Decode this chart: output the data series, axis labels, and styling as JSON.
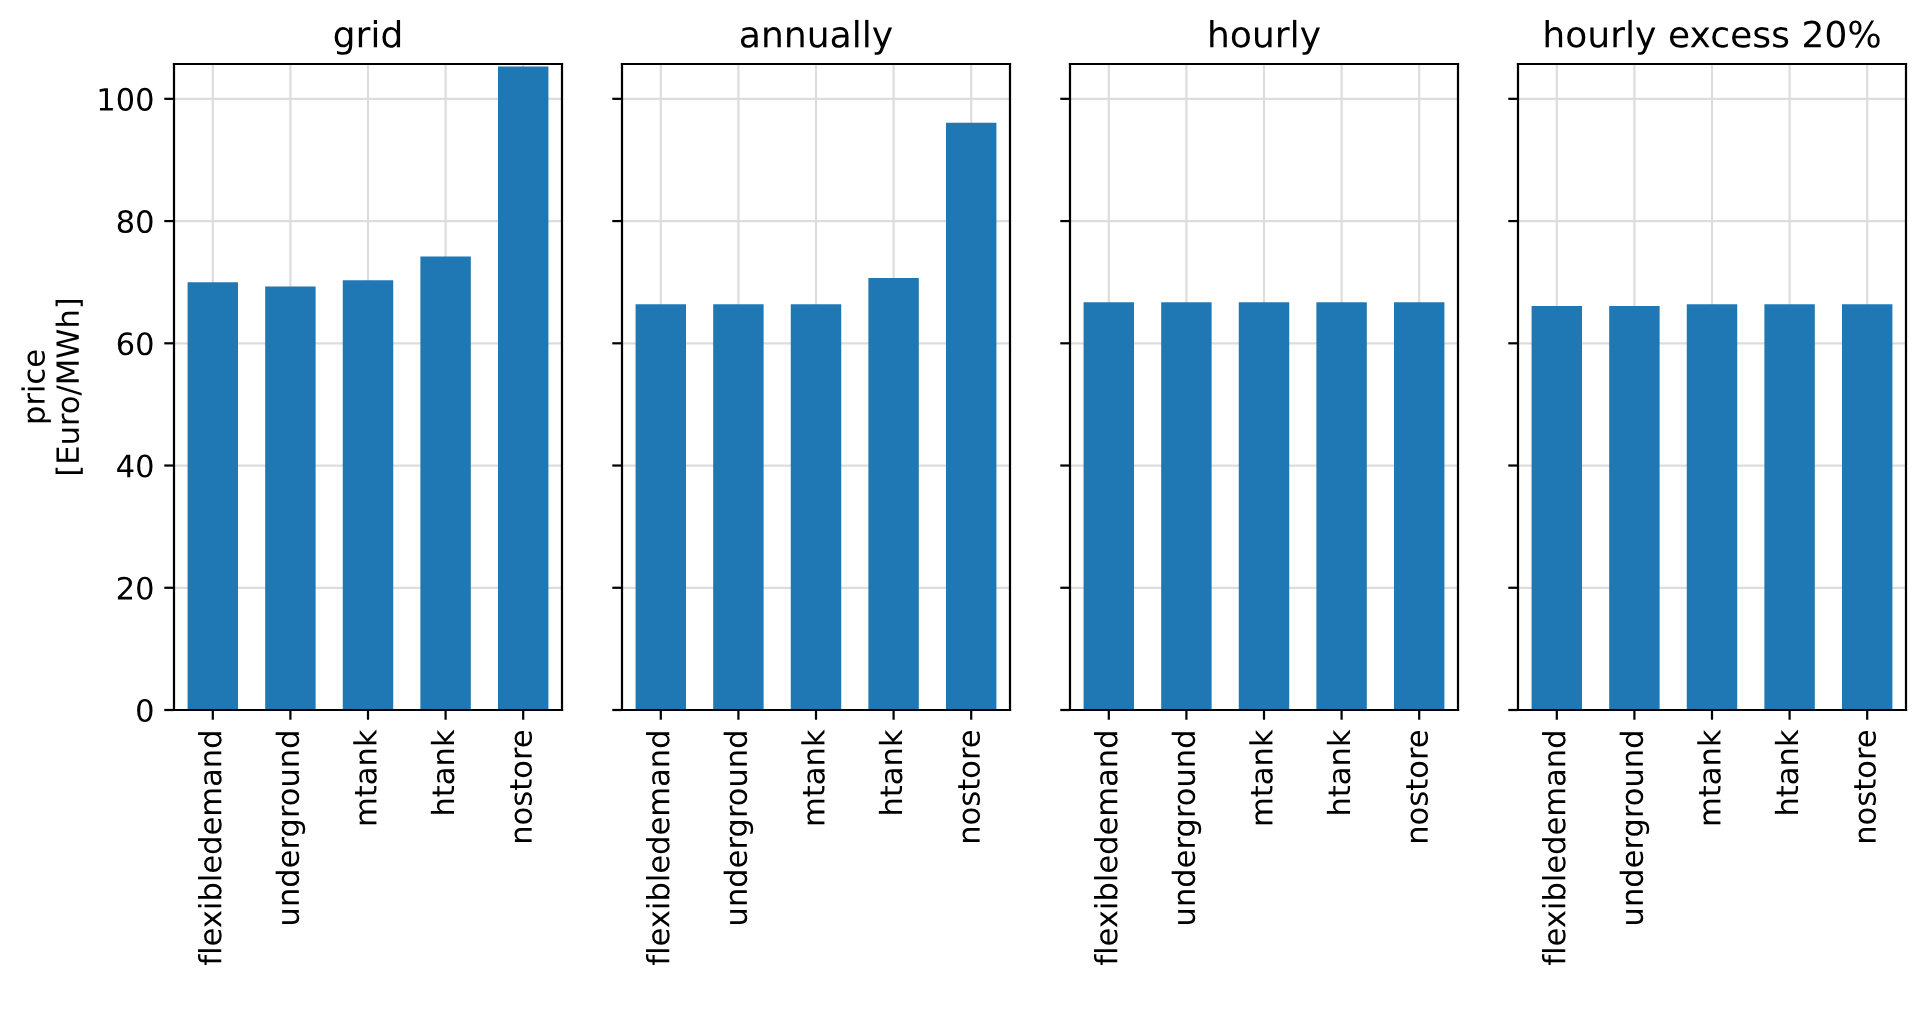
{
  "chart_data": [
    {
      "type": "bar",
      "title": "grid",
      "ylabel": "price\n[Euro/MWh]",
      "categories": [
        "flexibledemand",
        "underground",
        "mtank",
        "htank",
        "nostore"
      ],
      "values": [
        70.0,
        69.3,
        70.3,
        74.2,
        105.3
      ],
      "color": "#1f77b4",
      "ylim": [
        0,
        105.7
      ],
      "yticks": [
        0,
        20,
        40,
        60,
        80,
        100
      ],
      "grid": true
    },
    {
      "type": "bar",
      "title": "annually",
      "categories": [
        "flexibledemand",
        "underground",
        "mtank",
        "htank",
        "nostore"
      ],
      "values": [
        66.4,
        66.4,
        66.4,
        70.7,
        96.1
      ],
      "color": "#1f77b4",
      "ylim": [
        0,
        105.7
      ],
      "yticks": [
        0,
        20,
        40,
        60,
        80,
        100
      ],
      "grid": true,
      "tick_labels": "x"
    },
    {
      "type": "bar",
      "title": "hourly",
      "categories": [
        "flexibledemand",
        "underground",
        "mtank",
        "htank",
        "nostore"
      ],
      "values": [
        66.7,
        66.7,
        66.7,
        66.7,
        66.7
      ],
      "color": "#1f77b4",
      "ylim": [
        0,
        105.7
      ],
      "yticks": [
        0,
        20,
        40,
        60,
        80,
        100
      ],
      "grid": true,
      "tick_labels": "x"
    },
    {
      "type": "bar",
      "title": "hourly excess 20%",
      "categories": [
        "flexibledemand",
        "underground",
        "mtank",
        "htank",
        "nostore"
      ],
      "values": [
        66.1,
        66.1,
        66.4,
        66.4,
        66.4
      ],
      "color": "#1f77b4",
      "ylim": [
        0,
        105.7
      ],
      "yticks": [
        0,
        20,
        40,
        60,
        80,
        100
      ],
      "grid": true,
      "tick_labels": "x"
    }
  ]
}
